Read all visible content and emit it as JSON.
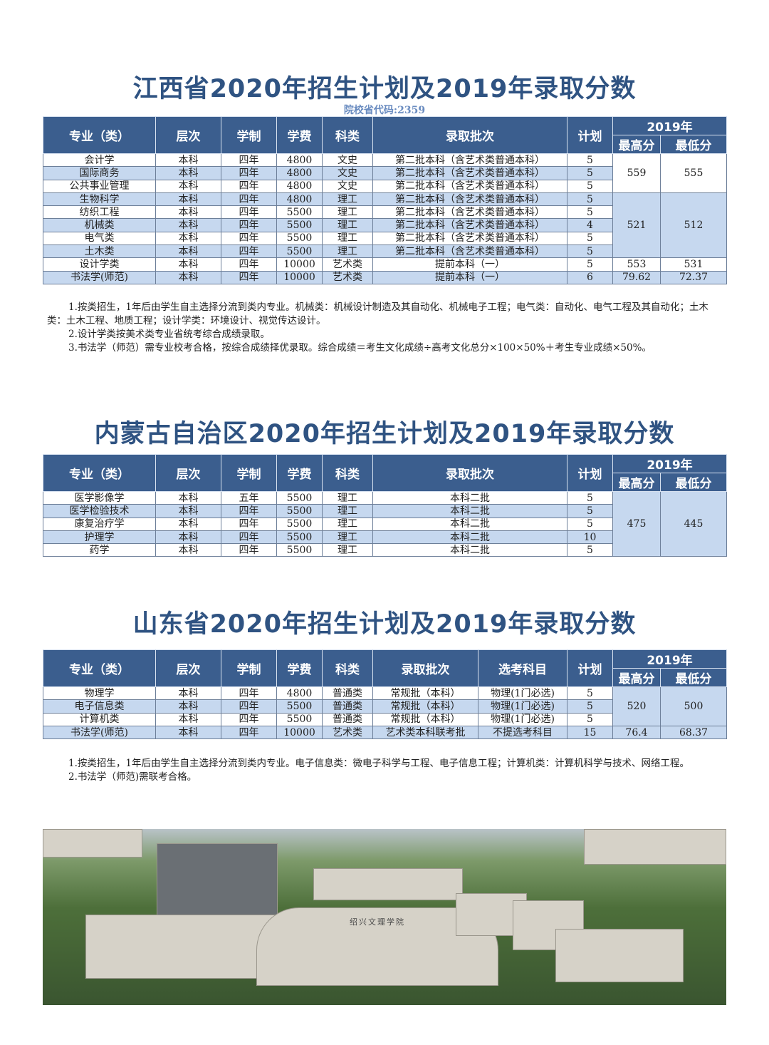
{
  "sections": [
    {
      "title": "江西省2020年招生计划及2019年录取分数",
      "code": "院校省代码:2359",
      "headers": [
        "专业（类）",
        "层次",
        "学制",
        "学费",
        "科类",
        "录取批次",
        "计划"
      ],
      "score_header": {
        "year": "2019年",
        "max": "最高分",
        "min": "最低分"
      },
      "rows": [
        [
          "会计学",
          "本科",
          "四年",
          "4800",
          "文史",
          "第二批本科（含艺术类普通本科）",
          "5"
        ],
        [
          "国际商务",
          "本科",
          "四年",
          "4800",
          "文史",
          "第二批本科（含艺术类普通本科）",
          "5"
        ],
        [
          "公共事业管理",
          "本科",
          "四年",
          "4800",
          "文史",
          "第二批本科（含艺术类普通本科）",
          "5"
        ],
        [
          "生物科学",
          "本科",
          "四年",
          "4800",
          "理工",
          "第二批本科（含艺术类普通本科）",
          "5"
        ],
        [
          "纺织工程",
          "本科",
          "四年",
          "5500",
          "理工",
          "第二批本科（含艺术类普通本科）",
          "5"
        ],
        [
          "机械类",
          "本科",
          "四年",
          "5500",
          "理工",
          "第二批本科（含艺术类普通本科）",
          "4"
        ],
        [
          "电气类",
          "本科",
          "四年",
          "5500",
          "理工",
          "第二批本科（含艺术类普通本科）",
          "5"
        ],
        [
          "土木类",
          "本科",
          "四年",
          "5500",
          "理工",
          "第二批本科（含艺术类普通本科）",
          "5"
        ],
        [
          "设计学类",
          "本科",
          "四年",
          "10000",
          "艺术类",
          "提前本科（一）",
          "5"
        ],
        [
          "书法学(师范)",
          "本科",
          "四年",
          "10000",
          "艺术类",
          "提前本科（一）",
          "6"
        ]
      ],
      "score_groups": [
        {
          "start": 0,
          "span": 3,
          "max": "559",
          "min": "555",
          "shade": "white"
        },
        {
          "start": 3,
          "span": 5,
          "max": "521",
          "min": "512",
          "shade": "blue"
        },
        {
          "start": 8,
          "span": 1,
          "max": "553",
          "min": "531",
          "shade": "white"
        },
        {
          "start": 9,
          "span": 1,
          "max": "79.62",
          "min": "72.37",
          "shade": "blue"
        }
      ],
      "notes": [
        "1.按类招生，1年后由学生自主选择分流到类内专业。机械类：机械设计制造及其自动化、机械电子工程；电气类：自动化、电气工程及其自动化；土木类：土木工程、地质工程；设计学类：环境设计、视觉传达设计。",
        "2.设计学类按美术类专业省统考综合成绩录取。",
        "3.书法学（师范）需专业校考合格，按综合成绩择优录取。综合成绩＝考生文化成绩÷高考文化总分×100×50%＋考生专业成绩×50%。"
      ]
    },
    {
      "title": "内蒙古自治区2020年招生计划及2019年录取分数",
      "headers": [
        "专业（类）",
        "层次",
        "学制",
        "学费",
        "科类",
        "录取批次",
        "计划"
      ],
      "score_header": {
        "year": "2019年",
        "max": "最高分",
        "min": "最低分"
      },
      "rows": [
        [
          "医学影像学",
          "本科",
          "五年",
          "5500",
          "理工",
          "本科二批",
          "5"
        ],
        [
          "医学检验技术",
          "本科",
          "四年",
          "5500",
          "理工",
          "本科二批",
          "5"
        ],
        [
          "康复治疗学",
          "本科",
          "四年",
          "5500",
          "理工",
          "本科二批",
          "5"
        ],
        [
          "护理学",
          "本科",
          "四年",
          "5500",
          "理工",
          "本科二批",
          "10"
        ],
        [
          "药学",
          "本科",
          "四年",
          "5500",
          "理工",
          "本科二批",
          "5"
        ]
      ],
      "score_groups": [
        {
          "start": 0,
          "span": 5,
          "max": "475",
          "min": "445",
          "shade": "blue"
        }
      ]
    },
    {
      "title": "山东省2020年招生计划及2019年录取分数",
      "headers": [
        "专业（类）",
        "层次",
        "学制",
        "学费",
        "科类",
        "录取批次",
        "选考科目",
        "计划"
      ],
      "score_header": {
        "year": "2019年",
        "max": "最高分",
        "min": "最低分"
      },
      "rows": [
        [
          "物理学",
          "本科",
          "四年",
          "4800",
          "普通类",
          "常规批（本科）",
          "物理(1门必选)",
          "5"
        ],
        [
          "电子信息类",
          "本科",
          "四年",
          "5500",
          "普通类",
          "常规批（本科）",
          "物理(1门必选)",
          "5"
        ],
        [
          "计算机类",
          "本科",
          "四年",
          "5500",
          "普通类",
          "常规批（本科）",
          "物理(1门必选)",
          "5"
        ],
        [
          "书法学(师范)",
          "本科",
          "四年",
          "10000",
          "艺术类",
          "艺术类本科联考批",
          "不提选考科目",
          "15"
        ]
      ],
      "score_groups": [
        {
          "start": 0,
          "span": 3,
          "max": "520",
          "min": "500",
          "shade": "blue"
        },
        {
          "start": 3,
          "span": 1,
          "max": "76.4",
          "min": "68.37",
          "shade": "blue"
        }
      ],
      "notes": [
        "1.按类招生，1年后由学生自主选择分流到类内专业。电子信息类：微电子科学与工程、电子信息工程；计算机类：计算机科学与技术、网络工程。",
        "2.书法学（师范)需联考合格。"
      ]
    }
  ],
  "photo": {
    "description_icon": "campus-aerial-photo",
    "sign": "绍兴文理学院"
  }
}
